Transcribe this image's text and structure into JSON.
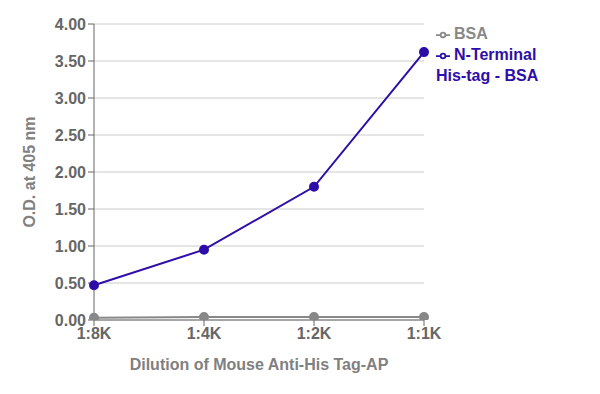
{
  "chart_data": {
    "type": "line",
    "x_label": "Dilution of Mouse Anti-His Tag-AP",
    "y_label": "O.D. at 405 nm",
    "categories": [
      "1:8K",
      "1:4K",
      "1:2K",
      "1:1K"
    ],
    "series": [
      {
        "name": "N-Terminal\nHis-tag - BSA",
        "color": "#2E0EA8",
        "marker": "circle",
        "values": [
          0.47,
          0.95,
          1.8,
          3.62
        ]
      },
      {
        "name": "BSA",
        "color": "#888888",
        "marker": "circle",
        "values": [
          0.03,
          0.04,
          0.04,
          0.04
        ]
      }
    ],
    "ylim": [
      0.0,
      4.0
    ],
    "yticks": [
      {
        "value": 0.0,
        "label": "0.00"
      },
      {
        "value": 0.5,
        "label": "0.50"
      },
      {
        "value": 1.0,
        "label": "1.00"
      },
      {
        "value": 1.5,
        "label": "1.50"
      },
      {
        "value": 2.0,
        "label": "2.00"
      },
      {
        "value": 2.5,
        "label": "2.50"
      },
      {
        "value": 3.0,
        "label": "3.00"
      },
      {
        "value": 3.5,
        "label": "3.50"
      },
      {
        "value": 4.0,
        "label": "4.00"
      }
    ],
    "grid": true,
    "legend": "right"
  }
}
